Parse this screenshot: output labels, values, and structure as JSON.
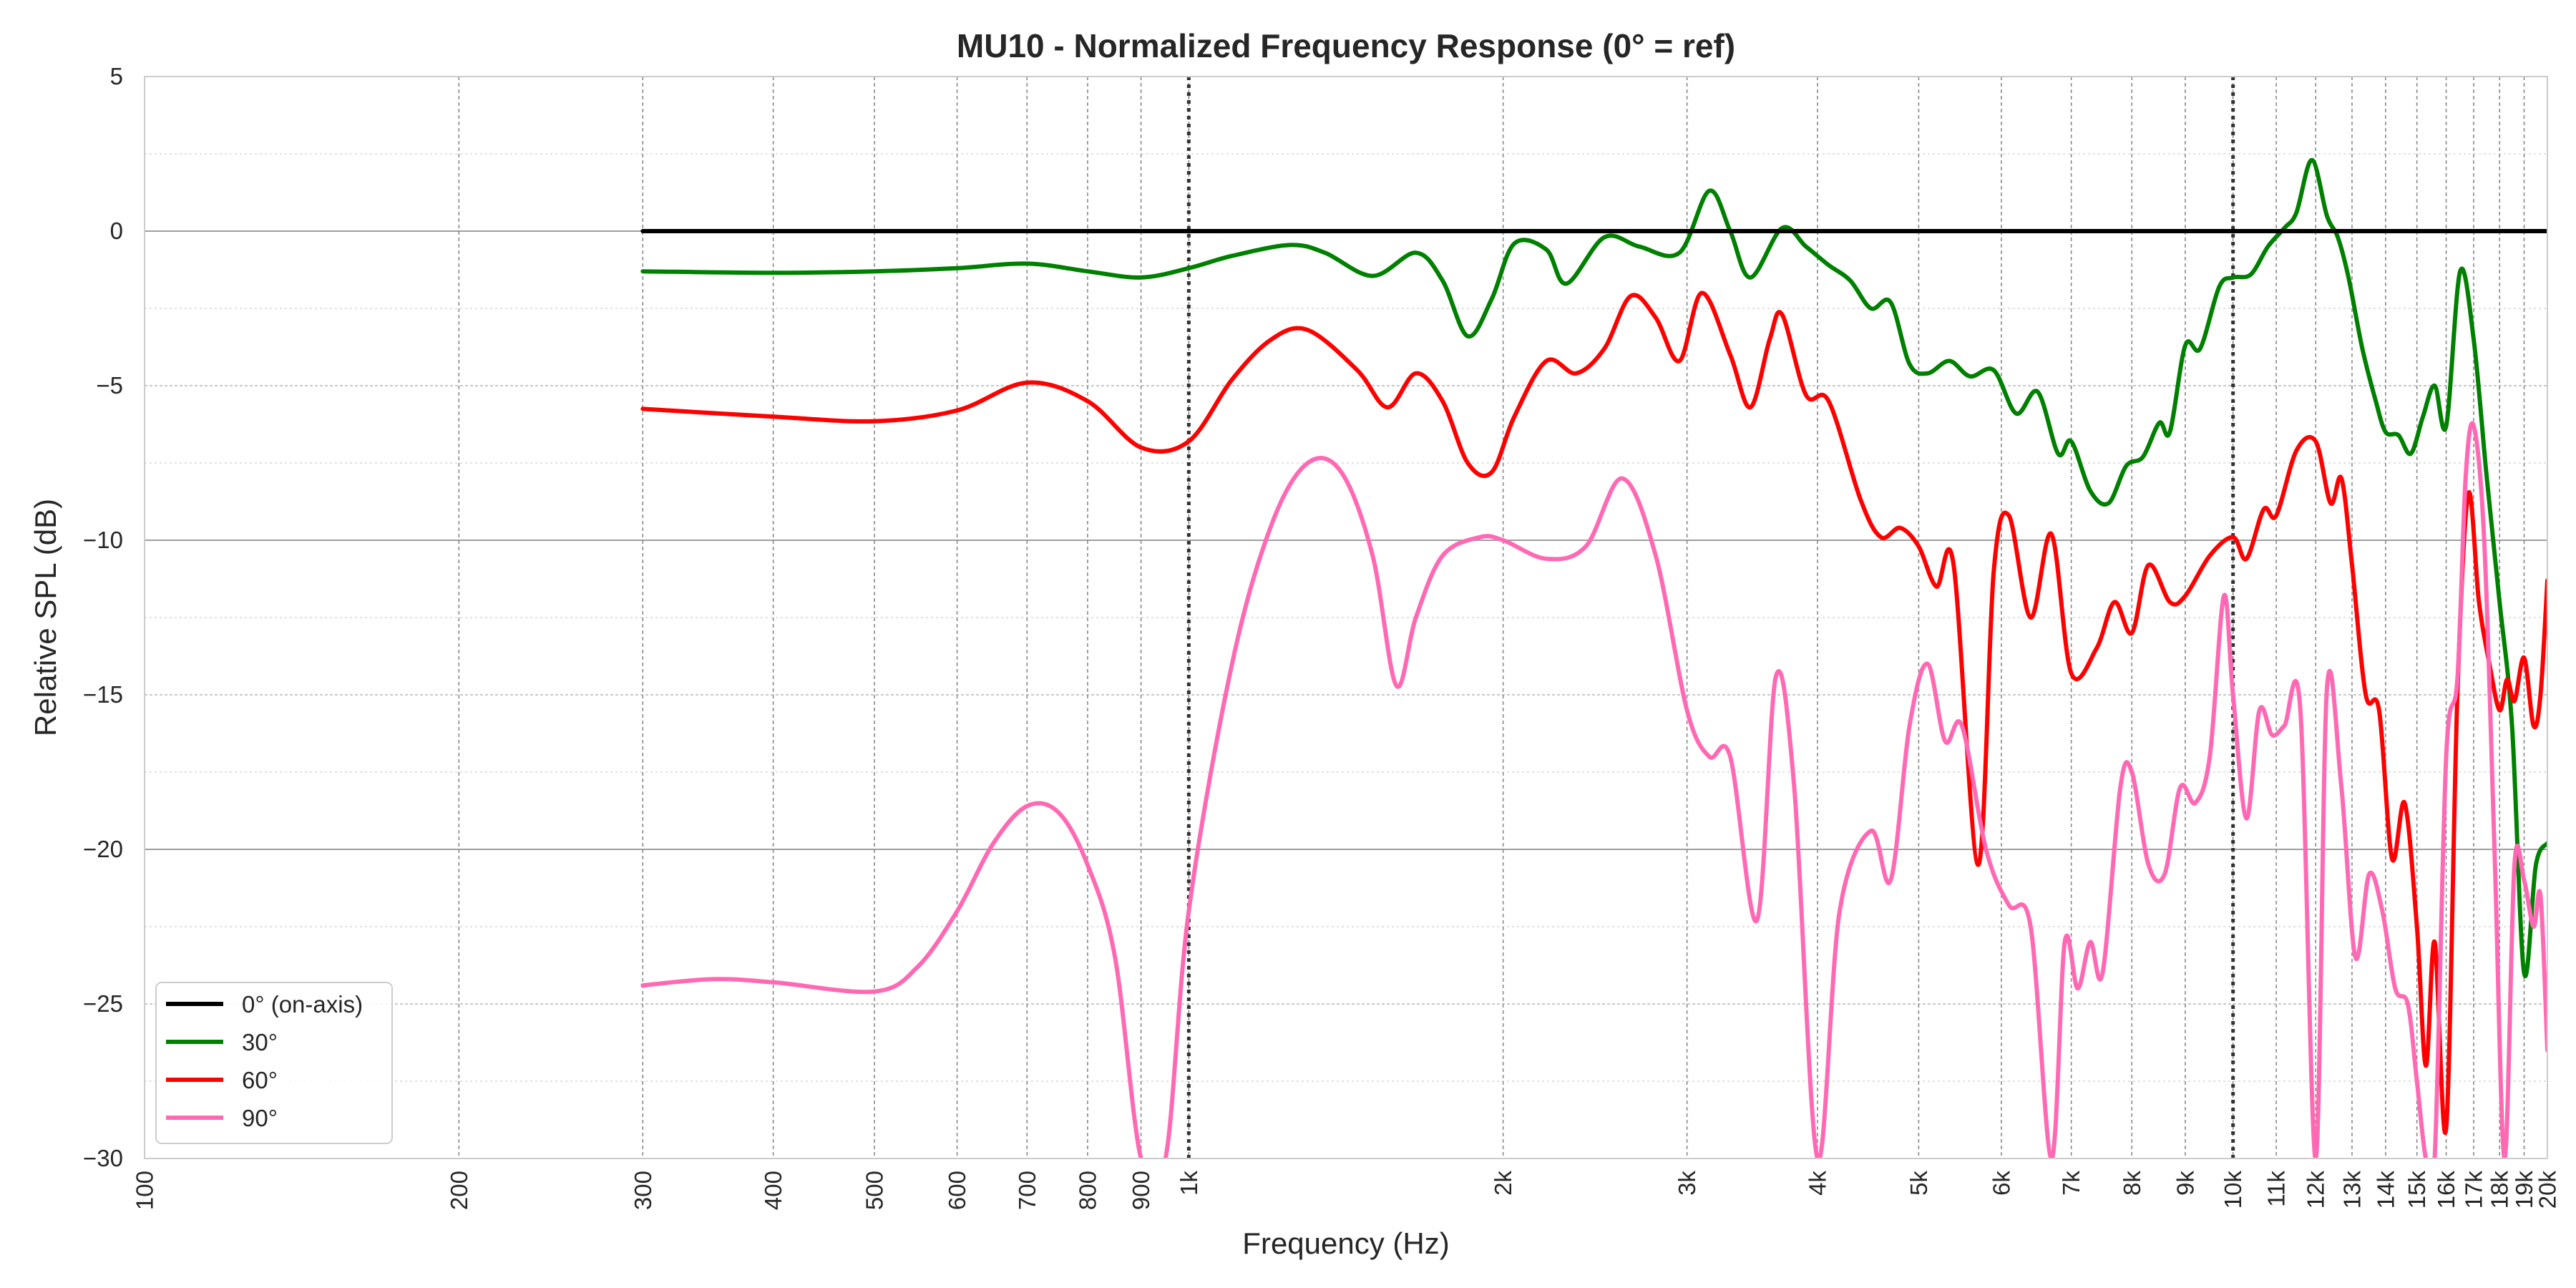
{
  "chart_data": {
    "type": "line",
    "title": "MU10 - Normalized Frequency Response (0° = ref)",
    "xlabel": "Frequency (Hz)",
    "ylabel": "Relative SPL (dB)",
    "x_scale": "log",
    "xlim": [
      100,
      20000
    ],
    "ylim": [
      -30,
      5
    ],
    "x_ticks": [
      {
        "value": 100,
        "label": "100"
      },
      {
        "value": 200,
        "label": "200"
      },
      {
        "value": 300,
        "label": "300"
      },
      {
        "value": 400,
        "label": "400"
      },
      {
        "value": 500,
        "label": "500"
      },
      {
        "value": 600,
        "label": "600"
      },
      {
        "value": 700,
        "label": "700"
      },
      {
        "value": 800,
        "label": "800"
      },
      {
        "value": 900,
        "label": "900"
      },
      {
        "value": 1000,
        "label": "1k"
      },
      {
        "value": 2000,
        "label": "2k"
      },
      {
        "value": 3000,
        "label": "3k"
      },
      {
        "value": 4000,
        "label": "4k"
      },
      {
        "value": 5000,
        "label": "5k"
      },
      {
        "value": 6000,
        "label": "6k"
      },
      {
        "value": 7000,
        "label": "7k"
      },
      {
        "value": 8000,
        "label": "8k"
      },
      {
        "value": 9000,
        "label": "9k"
      },
      {
        "value": 10000,
        "label": "10k"
      },
      {
        "value": 11000,
        "label": "11k"
      },
      {
        "value": 12000,
        "label": "12k"
      },
      {
        "value": 13000,
        "label": "13k"
      },
      {
        "value": 14000,
        "label": "14k"
      },
      {
        "value": 15000,
        "label": "15k"
      },
      {
        "value": 16000,
        "label": "16k"
      },
      {
        "value": 17000,
        "label": "17k"
      },
      {
        "value": 18000,
        "label": "18k"
      },
      {
        "value": 19000,
        "label": "19k"
      },
      {
        "value": 20000,
        "label": "20k"
      }
    ],
    "y_ticks": [
      {
        "value": 5,
        "label": "5"
      },
      {
        "value": 0,
        "label": "0"
      },
      {
        "value": -5,
        "label": "−5"
      },
      {
        "value": -10,
        "label": "−10"
      },
      {
        "value": -15,
        "label": "−15"
      },
      {
        "value": -20,
        "label": "−20"
      },
      {
        "value": -25,
        "label": "−25"
      },
      {
        "value": -30,
        "label": "−30"
      }
    ],
    "reference_lines_x": [
      1000,
      10000
    ],
    "grid": true,
    "legend_position": "bottom-left",
    "series": [
      {
        "name": "0° (on-axis)",
        "color": "#000000",
        "points": [
          [
            300,
            0
          ],
          [
            20000,
            0
          ]
        ]
      },
      {
        "name": "30°",
        "color": "#008000",
        "points": [
          [
            300,
            -1.3
          ],
          [
            400,
            -1.35
          ],
          [
            500,
            -1.3
          ],
          [
            600,
            -1.2
          ],
          [
            700,
            -1.05
          ],
          [
            800,
            -1.3
          ],
          [
            900,
            -1.5
          ],
          [
            1000,
            -1.2
          ],
          [
            1100,
            -0.8
          ],
          [
            1250,
            -0.45
          ],
          [
            1350,
            -0.7
          ],
          [
            1500,
            -1.45
          ],
          [
            1650,
            -0.7
          ],
          [
            1750,
            -1.6
          ],
          [
            1850,
            -3.4
          ],
          [
            1950,
            -2.2
          ],
          [
            2050,
            -0.4
          ],
          [
            2200,
            -0.6
          ],
          [
            2300,
            -1.7
          ],
          [
            2500,
            -0.2
          ],
          [
            2700,
            -0.5
          ],
          [
            2950,
            -0.7
          ],
          [
            3150,
            1.3
          ],
          [
            3300,
            0.0
          ],
          [
            3450,
            -1.5
          ],
          [
            3700,
            0.1
          ],
          [
            3900,
            -0.5
          ],
          [
            4100,
            -1.1
          ],
          [
            4300,
            -1.6
          ],
          [
            4500,
            -2.5
          ],
          [
            4700,
            -2.3
          ],
          [
            4900,
            -4.3
          ],
          [
            5100,
            -4.6
          ],
          [
            5350,
            -4.2
          ],
          [
            5600,
            -4.7
          ],
          [
            5900,
            -4.5
          ],
          [
            6200,
            -5.9
          ],
          [
            6500,
            -5.2
          ],
          [
            6800,
            -7.2
          ],
          [
            7000,
            -6.8
          ],
          [
            7300,
            -8.4
          ],
          [
            7600,
            -8.8
          ],
          [
            7900,
            -7.6
          ],
          [
            8200,
            -7.3
          ],
          [
            8500,
            -6.2
          ],
          [
            8700,
            -6.5
          ],
          [
            9000,
            -3.7
          ],
          [
            9300,
            -3.8
          ],
          [
            9700,
            -1.8
          ],
          [
            10000,
            -1.5
          ],
          [
            10400,
            -1.4
          ],
          [
            10800,
            -0.5
          ],
          [
            11200,
            0.1
          ],
          [
            11500,
            0.6
          ],
          [
            11900,
            2.3
          ],
          [
            12300,
            0.5
          ],
          [
            12600,
            -0.2
          ],
          [
            12900,
            -1.5
          ],
          [
            13300,
            -3.8
          ],
          [
            13700,
            -5.5
          ],
          [
            14000,
            -6.5
          ],
          [
            14400,
            -6.6
          ],
          [
            14800,
            -7.2
          ],
          [
            15200,
            -6.0
          ],
          [
            15600,
            -5.0
          ],
          [
            16000,
            -6.3
          ],
          [
            16500,
            -1.3
          ],
          [
            17000,
            -3.5
          ],
          [
            17500,
            -8.0
          ],
          [
            18000,
            -12.0
          ],
          [
            18500,
            -16.0
          ],
          [
            19000,
            -24.0
          ],
          [
            19500,
            -20.5
          ],
          [
            20000,
            -19.8
          ]
        ]
      },
      {
        "name": "60°",
        "color": "#ff0000",
        "points": [
          [
            300,
            -5.75
          ],
          [
            400,
            -6.0
          ],
          [
            500,
            -6.15
          ],
          [
            600,
            -5.8
          ],
          [
            700,
            -4.9
          ],
          [
            800,
            -5.5
          ],
          [
            900,
            -7.0
          ],
          [
            1000,
            -6.8
          ],
          [
            1100,
            -4.8
          ],
          [
            1200,
            -3.5
          ],
          [
            1300,
            -3.2
          ],
          [
            1450,
            -4.5
          ],
          [
            1550,
            -5.7
          ],
          [
            1650,
            -4.6
          ],
          [
            1750,
            -5.5
          ],
          [
            1850,
            -7.5
          ],
          [
            1950,
            -7.8
          ],
          [
            2050,
            -6.0
          ],
          [
            2200,
            -4.2
          ],
          [
            2350,
            -4.6
          ],
          [
            2500,
            -3.8
          ],
          [
            2650,
            -2.1
          ],
          [
            2800,
            -2.8
          ],
          [
            2950,
            -4.2
          ],
          [
            3100,
            -2.0
          ],
          [
            3300,
            -4.0
          ],
          [
            3450,
            -5.7
          ],
          [
            3600,
            -3.5
          ],
          [
            3700,
            -2.7
          ],
          [
            3900,
            -5.3
          ],
          [
            4100,
            -5.5
          ],
          [
            4400,
            -8.7
          ],
          [
            4600,
            -9.9
          ],
          [
            4800,
            -9.6
          ],
          [
            5000,
            -10.2
          ],
          [
            5200,
            -11.5
          ],
          [
            5400,
            -10.8
          ],
          [
            5700,
            -20.5
          ],
          [
            5900,
            -11.0
          ],
          [
            6100,
            -9.2
          ],
          [
            6400,
            -12.5
          ],
          [
            6700,
            -9.8
          ],
          [
            7000,
            -14.3
          ],
          [
            7400,
            -13.5
          ],
          [
            7700,
            -12.0
          ],
          [
            8000,
            -13.0
          ],
          [
            8300,
            -10.8
          ],
          [
            8700,
            -12.0
          ],
          [
            9000,
            -11.8
          ],
          [
            9500,
            -10.5
          ],
          [
            10000,
            -9.9
          ],
          [
            10300,
            -10.6
          ],
          [
            10700,
            -9.0
          ],
          [
            11000,
            -9.2
          ],
          [
            11500,
            -7.1
          ],
          [
            12000,
            -6.8
          ],
          [
            12400,
            -8.8
          ],
          [
            12700,
            -8.0
          ],
          [
            13000,
            -10.8
          ],
          [
            13400,
            -15.0
          ],
          [
            13800,
            -15.5
          ],
          [
            14200,
            -20.3
          ],
          [
            14600,
            -18.5
          ],
          [
            15000,
            -22.5
          ],
          [
            15300,
            -27.0
          ],
          [
            15600,
            -23.0
          ],
          [
            16000,
            -29.0
          ],
          [
            16400,
            -15.0
          ],
          [
            16800,
            -8.5
          ],
          [
            17200,
            -12.0
          ],
          [
            17600,
            -14.0
          ],
          [
            18000,
            -15.5
          ],
          [
            18300,
            -14.5
          ],
          [
            18600,
            -15.2
          ],
          [
            19000,
            -13.8
          ],
          [
            19400,
            -16.0
          ],
          [
            19700,
            -15.0
          ],
          [
            20000,
            -11.3
          ]
        ]
      },
      {
        "name": "90°",
        "color": "#ff69b4",
        "points": [
          [
            300,
            -24.4
          ],
          [
            350,
            -24.2
          ],
          [
            400,
            -24.3
          ],
          [
            500,
            -24.6
          ],
          [
            550,
            -23.8
          ],
          [
            600,
            -22.0
          ],
          [
            650,
            -19.8
          ],
          [
            700,
            -18.6
          ],
          [
            750,
            -18.8
          ],
          [
            800,
            -20.5
          ],
          [
            850,
            -23.5
          ],
          [
            900,
            -30.0
          ],
          [
            950,
            -30.0
          ],
          [
            1000,
            -22.0
          ],
          [
            1100,
            -14.0
          ],
          [
            1200,
            -9.5
          ],
          [
            1300,
            -7.5
          ],
          [
            1400,
            -7.8
          ],
          [
            1500,
            -10.5
          ],
          [
            1580,
            -14.7
          ],
          [
            1650,
            -12.5
          ],
          [
            1750,
            -10.5
          ],
          [
            1900,
            -9.9
          ],
          [
            2000,
            -10.0
          ],
          [
            2200,
            -10.6
          ],
          [
            2400,
            -10.2
          ],
          [
            2600,
            -8.0
          ],
          [
            2800,
            -10.5
          ],
          [
            3000,
            -15.5
          ],
          [
            3150,
            -17.0
          ],
          [
            3300,
            -17.0
          ],
          [
            3500,
            -22.3
          ],
          [
            3650,
            -14.4
          ],
          [
            3800,
            -18.0
          ],
          [
            4000,
            -30.0
          ],
          [
            4200,
            -22.0
          ],
          [
            4500,
            -19.4
          ],
          [
            4700,
            -21.0
          ],
          [
            4900,
            -16.0
          ],
          [
            5100,
            -14.0
          ],
          [
            5300,
            -16.5
          ],
          [
            5500,
            -16.0
          ],
          [
            5800,
            -20.0
          ],
          [
            6100,
            -21.8
          ],
          [
            6400,
            -22.5
          ],
          [
            6700,
            -30.0
          ],
          [
            6900,
            -23.0
          ],
          [
            7100,
            -24.5
          ],
          [
            7300,
            -23.0
          ],
          [
            7500,
            -24.0
          ],
          [
            7800,
            -18.0
          ],
          [
            8000,
            -17.5
          ],
          [
            8300,
            -20.5
          ],
          [
            8600,
            -20.8
          ],
          [
            8900,
            -18.0
          ],
          [
            9200,
            -18.5
          ],
          [
            9500,
            -17.0
          ],
          [
            9800,
            -11.8
          ],
          [
            10000,
            -15.0
          ],
          [
            10300,
            -19.0
          ],
          [
            10600,
            -15.5
          ],
          [
            10900,
            -16.3
          ],
          [
            11200,
            -16.0
          ],
          [
            11600,
            -15.5
          ],
          [
            12000,
            -30.0
          ],
          [
            12300,
            -14.8
          ],
          [
            12700,
            -18.0
          ],
          [
            13100,
            -23.5
          ],
          [
            13500,
            -20.8
          ],
          [
            13900,
            -22.0
          ],
          [
            14300,
            -24.5
          ],
          [
            14700,
            -25.0
          ],
          [
            15000,
            -27.5
          ],
          [
            15300,
            -30.0
          ],
          [
            15600,
            -30.0
          ],
          [
            16000,
            -17.0
          ],
          [
            16400,
            -14.5
          ],
          [
            16700,
            -8.0
          ],
          [
            17000,
            -6.3
          ],
          [
            17400,
            -10.0
          ],
          [
            17800,
            -20.0
          ],
          [
            18200,
            -30.0
          ],
          [
            18600,
            -20.5
          ],
          [
            19000,
            -21.0
          ],
          [
            19400,
            -22.5
          ],
          [
            19700,
            -21.5
          ],
          [
            20000,
            -26.5
          ]
        ]
      }
    ]
  }
}
